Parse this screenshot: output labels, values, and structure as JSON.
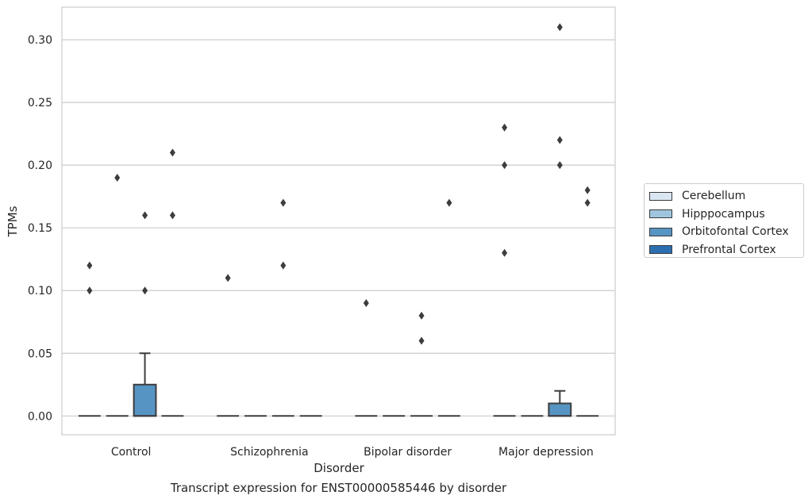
{
  "chart_data": {
    "type": "box",
    "title": "",
    "xlabel": "Disorder",
    "ylabel": "TPMs",
    "caption": "Transcript expression for ENST00000585446 by disorder",
    "ylim": [
      -0.015,
      0.326
    ],
    "yticks": [
      "0.00",
      "0.05",
      "0.10",
      "0.15",
      "0.20",
      "0.25",
      "0.30"
    ],
    "ytick_values": [
      0.0,
      0.05,
      0.1,
      0.15,
      0.2,
      0.25,
      0.3
    ],
    "grid": true,
    "legend_placement": "right",
    "categories": [
      "Control",
      "Schizophrenia",
      "Bipolar disorder",
      "Major depression"
    ],
    "series": [
      {
        "name": "Cerebellum",
        "color": "#dae7f3",
        "boxes": [
          {
            "q1": 0,
            "median": 0,
            "q3": 0,
            "whisker_low": 0,
            "whisker_high": 0,
            "outliers": [
              0.12,
              0.1
            ]
          },
          {
            "q1": 0,
            "median": 0,
            "q3": 0,
            "whisker_low": 0,
            "whisker_high": 0,
            "outliers": [
              0.11
            ]
          },
          {
            "q1": 0,
            "median": 0,
            "q3": 0,
            "whisker_low": 0,
            "whisker_high": 0,
            "outliers": [
              0.09
            ]
          },
          {
            "q1": 0,
            "median": 0,
            "q3": 0,
            "whisker_low": 0,
            "whisker_high": 0,
            "outliers": [
              0.23,
              0.2,
              0.13
            ]
          }
        ]
      },
      {
        "name": "Hipppocampus",
        "color": "#9ec5dd",
        "boxes": [
          {
            "q1": 0,
            "median": 0,
            "q3": 0,
            "whisker_low": 0,
            "whisker_high": 0,
            "outliers": [
              0.19
            ]
          },
          {
            "q1": 0,
            "median": 0,
            "q3": 0,
            "whisker_low": 0,
            "whisker_high": 0,
            "outliers": []
          },
          {
            "q1": 0,
            "median": 0,
            "q3": 0,
            "whisker_low": 0,
            "whisker_high": 0,
            "outliers": []
          },
          {
            "q1": 0,
            "median": 0,
            "q3": 0,
            "whisker_low": 0,
            "whisker_high": 0,
            "outliers": []
          }
        ]
      },
      {
        "name": "Orbitofontal Cortex",
        "color": "#5694c3",
        "boxes": [
          {
            "q1": 0,
            "median": 0,
            "q3": 0.025,
            "whisker_low": 0,
            "whisker_high": 0.05,
            "outliers": [
              0.16,
              0.1
            ]
          },
          {
            "q1": 0,
            "median": 0,
            "q3": 0,
            "whisker_low": 0,
            "whisker_high": 0,
            "outliers": [
              0.17,
              0.12
            ]
          },
          {
            "q1": 0,
            "median": 0,
            "q3": 0,
            "whisker_low": 0,
            "whisker_high": 0,
            "outliers": [
              0.08,
              0.06
            ]
          },
          {
            "q1": 0,
            "median": 0,
            "q3": 0.01,
            "whisker_low": 0,
            "whisker_high": 0.02,
            "outliers": [
              0.31,
              0.22,
              0.2
            ]
          }
        ]
      },
      {
        "name": "Prefrontal Cortex",
        "color": "#2c6fb0",
        "boxes": [
          {
            "q1": 0,
            "median": 0,
            "q3": 0,
            "whisker_low": 0,
            "whisker_high": 0,
            "outliers": [
              0.21,
              0.16
            ]
          },
          {
            "q1": 0,
            "median": 0,
            "q3": 0,
            "whisker_low": 0,
            "whisker_high": 0,
            "outliers": []
          },
          {
            "q1": 0,
            "median": 0,
            "q3": 0,
            "whisker_low": 0,
            "whisker_high": 0,
            "outliers": [
              0.17
            ]
          },
          {
            "q1": 0,
            "median": 0,
            "q3": 0,
            "whisker_low": 0,
            "whisker_high": 0,
            "outliers": [
              0.18,
              0.17
            ]
          }
        ]
      }
    ]
  }
}
